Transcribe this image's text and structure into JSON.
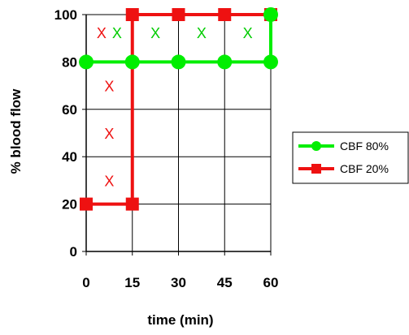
{
  "chart_data": {
    "type": "line",
    "title": "",
    "xlabel": "time (min)",
    "ylabel": "% blood flow",
    "xlim": [
      0,
      60
    ],
    "ylim": [
      0,
      100
    ],
    "x_ticks": [
      0,
      15,
      30,
      45,
      60
    ],
    "y_ticks": [
      0,
      20,
      40,
      60,
      80,
      100
    ],
    "grid": true,
    "legend_position": "right",
    "series": [
      {
        "name": "CBF 80%",
        "color": "#00ee00",
        "marker": "circle",
        "x": [
          0,
          15,
          30,
          45,
          60,
          60
        ],
        "y": [
          80,
          80,
          80,
          80,
          80,
          100
        ]
      },
      {
        "name": "CBF 20%",
        "color": "#ee1111",
        "marker": "square",
        "x": [
          0,
          15,
          15,
          30,
          45,
          60
        ],
        "y": [
          20,
          20,
          100,
          100,
          100,
          100
        ]
      }
    ],
    "annotations": [
      {
        "text": "X",
        "x": 5,
        "y": 92.5,
        "color": "#ee1111"
      },
      {
        "text": "X",
        "x": 10,
        "y": 92.5,
        "color": "#00cc00"
      },
      {
        "text": "X",
        "x": 22.5,
        "y": 92.5,
        "color": "#00cc00"
      },
      {
        "text": "X",
        "x": 37.5,
        "y": 92.5,
        "color": "#00cc00"
      },
      {
        "text": "X",
        "x": 52.5,
        "y": 92.5,
        "color": "#00cc00"
      },
      {
        "text": "X",
        "x": 7.5,
        "y": 70,
        "color": "#ee1111"
      },
      {
        "text": "X",
        "x": 7.5,
        "y": 50,
        "color": "#ee1111"
      },
      {
        "text": "X",
        "x": 7.5,
        "y": 30,
        "color": "#ee1111"
      }
    ]
  }
}
